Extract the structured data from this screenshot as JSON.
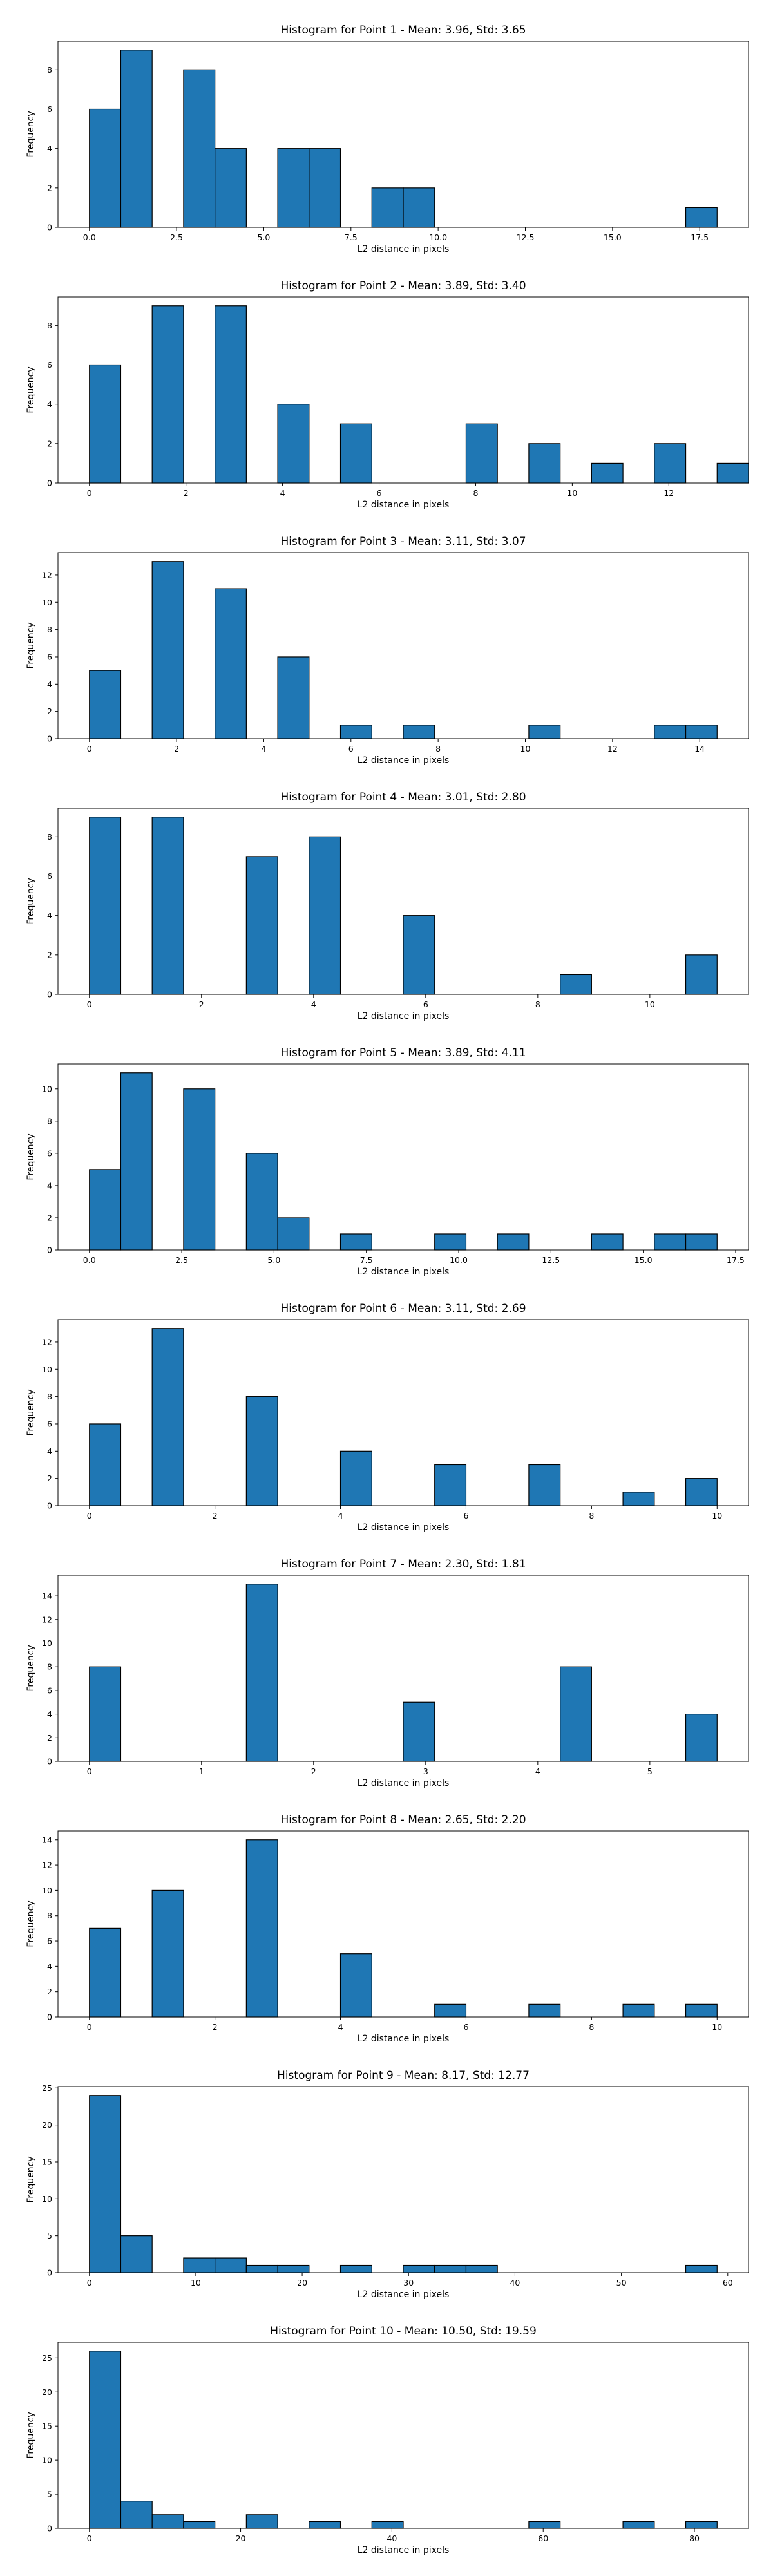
{
  "figure": {
    "bar_color": "#1f77b4",
    "edge_color": "#000000",
    "background": "#ffffff"
  },
  "chart_data": [
    {
      "type": "bar",
      "title": "Histogram for Point 1 - Mean: 3.96, Std: 3.65",
      "xlabel": "L2 distance in pixels",
      "ylabel": "Frequency",
      "xlim": [
        -0.9,
        18.9
      ],
      "ylim": [
        0,
        9.45
      ],
      "x_ticks": [
        0,
        2.5,
        5,
        7.5,
        10,
        12.5,
        15,
        17.5
      ],
      "x_tick_labels": [
        "0.0",
        "2.5",
        "5.0",
        "7.5",
        "10.0",
        "12.5",
        "15.0",
        "17.5"
      ],
      "y_ticks": [
        0,
        2,
        4,
        6,
        8
      ],
      "y_tick_labels": [
        "0",
        "2",
        "4",
        "6",
        "8"
      ],
      "bin_start": 0,
      "bin_width": 0.9,
      "values": [
        6,
        9,
        0,
        8,
        4,
        0,
        4,
        4,
        0,
        2,
        2,
        0,
        0,
        0,
        0,
        0,
        0,
        0,
        0,
        1
      ]
    },
    {
      "type": "bar",
      "title": "Histogram for Point 2 - Mean: 3.89, Std: 3.40",
      "xlabel": "L2 distance in pixels",
      "ylabel": "Frequency",
      "xlim": [
        -0.65,
        13.65
      ],
      "ylim": [
        0,
        9.45
      ],
      "x_ticks": [
        0,
        2,
        4,
        6,
        8,
        10,
        12
      ],
      "x_tick_labels": [
        "0",
        "2",
        "4",
        "6",
        "8",
        "10",
        "12"
      ],
      "y_ticks": [
        0,
        2,
        4,
        6,
        8
      ],
      "y_tick_labels": [
        "0",
        "2",
        "4",
        "6",
        "8"
      ],
      "bin_start": 0,
      "bin_width": 0.65,
      "values": [
        6,
        0,
        9,
        0,
        9,
        0,
        4,
        0,
        3,
        0,
        0,
        0,
        3,
        0,
        2,
        0,
        1,
        0,
        2,
        0,
        1
      ]
    },
    {
      "type": "bar",
      "title": "Histogram for Point 3 - Mean: 3.11, Std: 3.07",
      "xlabel": "L2 distance in pixels",
      "ylabel": "Frequency",
      "xlim": [
        -0.72,
        15.12
      ],
      "ylim": [
        0,
        13.65
      ],
      "x_ticks": [
        0,
        2,
        4,
        6,
        8,
        10,
        12,
        14
      ],
      "x_tick_labels": [
        "0",
        "2",
        "4",
        "6",
        "8",
        "10",
        "12",
        "14"
      ],
      "y_ticks": [
        0,
        2,
        4,
        6,
        8,
        10,
        12
      ],
      "y_tick_labels": [
        "0",
        "2",
        "4",
        "6",
        "8",
        "10",
        "12"
      ],
      "bin_start": 0,
      "bin_width": 0.72,
      "values": [
        5,
        0,
        13,
        0,
        11,
        0,
        6,
        0,
        1,
        0,
        1,
        0,
        0,
        0,
        1,
        0,
        0,
        0,
        1,
        1
      ]
    },
    {
      "type": "bar",
      "title": "Histogram for Point 4 - Mean: 3.01, Std: 2.80",
      "xlabel": "L2 distance in pixels",
      "ylabel": "Frequency",
      "xlim": [
        -0.56,
        11.76
      ],
      "ylim": [
        0,
        9.45
      ],
      "x_ticks": [
        0,
        2,
        4,
        6,
        8,
        10
      ],
      "x_tick_labels": [
        "0",
        "2",
        "4",
        "6",
        "8",
        "10"
      ],
      "y_ticks": [
        0,
        2,
        4,
        6,
        8
      ],
      "y_tick_labels": [
        "0",
        "2",
        "4",
        "6",
        "8"
      ],
      "bin_start": 0,
      "bin_width": 0.56,
      "values": [
        9,
        0,
        9,
        0,
        0,
        7,
        0,
        8,
        0,
        0,
        4,
        0,
        0,
        0,
        0,
        1,
        0,
        0,
        0,
        2
      ]
    },
    {
      "type": "bar",
      "title": "Histogram for Point 5 - Mean: 3.89, Std: 4.11",
      "xlabel": "L2 distance in pixels",
      "ylabel": "Frequency",
      "xlim": [
        -0.85,
        17.85
      ],
      "ylim": [
        0,
        11.55
      ],
      "x_ticks": [
        0,
        2.5,
        5,
        7.5,
        10,
        12.5,
        15,
        17.5
      ],
      "x_tick_labels": [
        "0.0",
        "2.5",
        "5.0",
        "7.5",
        "10.0",
        "12.5",
        "15.0",
        "17.5"
      ],
      "y_ticks": [
        0,
        2,
        4,
        6,
        8,
        10
      ],
      "y_tick_labels": [
        "0",
        "2",
        "4",
        "6",
        "8",
        "10"
      ],
      "bin_start": 0,
      "bin_width": 0.85,
      "values": [
        5,
        11,
        0,
        10,
        0,
        6,
        2,
        0,
        1,
        0,
        0,
        1,
        0,
        1,
        0,
        0,
        1,
        0,
        1,
        1
      ]
    },
    {
      "type": "bar",
      "title": "Histogram for Point 6 - Mean: 3.11, Std: 2.69",
      "xlabel": "L2 distance in pixels",
      "ylabel": "Frequency",
      "xlim": [
        -0.5,
        10.5
      ],
      "ylim": [
        0,
        13.65
      ],
      "x_ticks": [
        0,
        2,
        4,
        6,
        8,
        10
      ],
      "x_tick_labels": [
        "0",
        "2",
        "4",
        "6",
        "8",
        "10"
      ],
      "y_ticks": [
        0,
        2,
        4,
        6,
        8,
        10,
        12
      ],
      "y_tick_labels": [
        "0",
        "2",
        "4",
        "6",
        "8",
        "10",
        "12"
      ],
      "bin_start": 0,
      "bin_width": 0.5,
      "values": [
        6,
        0,
        13,
        0,
        0,
        8,
        0,
        0,
        4,
        0,
        0,
        3,
        0,
        0,
        3,
        0,
        0,
        1,
        0,
        2
      ]
    },
    {
      "type": "bar",
      "title": "Histogram for Point 7 - Mean: 2.30, Std: 1.81",
      "xlabel": "L2 distance in pixels",
      "ylabel": "Frequency",
      "xlim": [
        -0.28,
        5.88
      ],
      "ylim": [
        0,
        15.75
      ],
      "x_ticks": [
        0,
        1,
        2,
        3,
        4,
        5
      ],
      "x_tick_labels": [
        "0",
        "1",
        "2",
        "3",
        "4",
        "5"
      ],
      "y_ticks": [
        0,
        2,
        4,
        6,
        8,
        10,
        12,
        14
      ],
      "y_tick_labels": [
        "0",
        "2",
        "4",
        "6",
        "8",
        "10",
        "12",
        "14"
      ],
      "bin_start": 0,
      "bin_width": 0.28,
      "values": [
        8,
        0,
        0,
        0,
        0,
        15,
        0,
        0,
        0,
        0,
        5,
        0,
        0,
        0,
        0,
        8,
        0,
        0,
        0,
        4
      ]
    },
    {
      "type": "bar",
      "title": "Histogram for Point 8 - Mean: 2.65, Std: 2.20",
      "xlabel": "L2 distance in pixels",
      "ylabel": "Frequency",
      "xlim": [
        -0.5,
        10.5
      ],
      "ylim": [
        0,
        14.7
      ],
      "x_ticks": [
        0,
        2,
        4,
        6,
        8,
        10
      ],
      "x_tick_labels": [
        "0",
        "2",
        "4",
        "6",
        "8",
        "10"
      ],
      "y_ticks": [
        0,
        2,
        4,
        6,
        8,
        10,
        12,
        14
      ],
      "y_tick_labels": [
        "0",
        "2",
        "4",
        "6",
        "8",
        "10",
        "12",
        "14"
      ],
      "bin_start": 0,
      "bin_width": 0.5,
      "values": [
        7,
        0,
        10,
        0,
        0,
        14,
        0,
        0,
        5,
        0,
        0,
        1,
        0,
        0,
        1,
        0,
        0,
        1,
        0,
        1
      ]
    },
    {
      "type": "bar",
      "title": "Histogram for Point 9 - Mean: 8.17, Std: 12.77",
      "xlabel": "L2 distance in pixels",
      "ylabel": "Frequency",
      "xlim": [
        -2.95,
        61.95
      ],
      "ylim": [
        0,
        25.2
      ],
      "x_ticks": [
        0,
        10,
        20,
        30,
        40,
        50,
        60
      ],
      "x_tick_labels": [
        "0",
        "10",
        "20",
        "30",
        "40",
        "50",
        "60"
      ],
      "y_ticks": [
        0,
        5,
        10,
        15,
        20,
        25
      ],
      "y_tick_labels": [
        "0",
        "5",
        "10",
        "15",
        "20",
        "25"
      ],
      "bin_start": 0,
      "bin_width": 2.95,
      "values": [
        24,
        5,
        0,
        2,
        2,
        1,
        1,
        0,
        1,
        0,
        1,
        1,
        1,
        0,
        0,
        0,
        0,
        0,
        0,
        1
      ]
    },
    {
      "type": "bar",
      "title": "Histogram for Point 10 - Mean: 10.50, Std: 19.59",
      "xlabel": "L2 distance in pixels",
      "ylabel": "Frequency",
      "xlim": [
        -4.15,
        87.15
      ],
      "ylim": [
        0,
        27.3
      ],
      "x_ticks": [
        0,
        20,
        40,
        60,
        80
      ],
      "x_tick_labels": [
        "0",
        "20",
        "40",
        "60",
        "80"
      ],
      "y_ticks": [
        0,
        5,
        10,
        15,
        20,
        25
      ],
      "y_tick_labels": [
        "0",
        "5",
        "10",
        "15",
        "20",
        "25"
      ],
      "bin_start": 0,
      "bin_width": 4.15,
      "values": [
        26,
        4,
        2,
        1,
        0,
        2,
        0,
        1,
        0,
        1,
        0,
        0,
        0,
        0,
        1,
        0,
        0,
        1,
        0,
        1
      ]
    }
  ]
}
